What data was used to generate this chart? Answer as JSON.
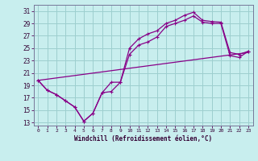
{
  "xlabel": "Windchill (Refroidissement éolien,°C)",
  "xlim": [
    -0.5,
    23.5
  ],
  "ylim": [
    12.5,
    32.0
  ],
  "xticks": [
    0,
    1,
    2,
    3,
    4,
    5,
    6,
    7,
    8,
    9,
    10,
    11,
    12,
    13,
    14,
    15,
    16,
    17,
    18,
    19,
    20,
    21,
    22,
    23
  ],
  "yticks": [
    13,
    15,
    17,
    19,
    21,
    23,
    25,
    27,
    29,
    31
  ],
  "bg_color": "#c8eeee",
  "line_color": "#880088",
  "grid_color": "#9dcfcf",
  "line1_x": [
    0,
    1,
    2,
    3,
    4,
    5,
    6,
    7,
    8,
    9,
    10,
    11,
    12,
    13,
    14,
    15,
    16,
    17,
    18,
    19,
    20,
    21,
    22,
    23
  ],
  "line1_y": [
    19.8,
    18.2,
    17.5,
    16.5,
    15.5,
    13.2,
    14.5,
    17.8,
    19.5,
    19.5,
    25.0,
    26.5,
    27.3,
    27.8,
    29.0,
    29.5,
    30.3,
    30.8,
    29.5,
    29.3,
    29.2,
    24.3,
    24.0,
    24.5
  ],
  "line2_x": [
    0,
    1,
    2,
    3,
    4,
    5,
    6,
    7,
    8,
    9,
    10,
    11,
    12,
    13,
    14,
    15,
    16,
    17,
    18,
    19,
    20,
    21,
    22,
    23
  ],
  "line2_y": [
    19.8,
    18.2,
    17.5,
    16.5,
    15.5,
    13.2,
    14.5,
    17.8,
    18.0,
    19.5,
    24.0,
    25.5,
    26.0,
    26.8,
    28.5,
    29.0,
    29.5,
    30.2,
    29.2,
    29.0,
    29.0,
    23.8,
    23.5,
    24.5
  ],
  "line3_x": [
    0,
    23
  ],
  "line3_y": [
    19.8,
    24.3
  ]
}
